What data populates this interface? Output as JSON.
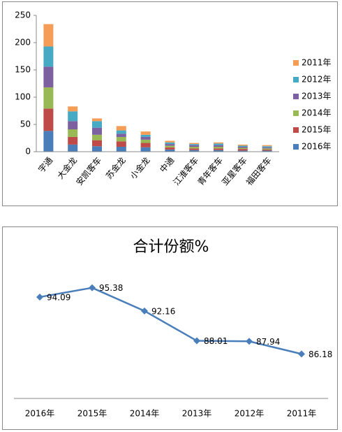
{
  "chart_data": [
    {
      "type": "stacked_bar",
      "categories": [
        "宇通",
        "大金龙",
        "安凯客车",
        "苏金龙",
        "小金龙",
        "中通",
        "江淮客车",
        "青年客车",
        "亚星客车",
        "福田客车"
      ],
      "series": [
        {
          "name": "2016年",
          "color": "#4a7ebb",
          "values": [
            38,
            13,
            10,
            9,
            8,
            4,
            3,
            3,
            2,
            2
          ]
        },
        {
          "name": "2015年",
          "color": "#be4b48",
          "values": [
            41,
            14,
            11,
            10,
            8,
            4,
            3,
            3,
            3,
            2
          ]
        },
        {
          "name": "2014年",
          "color": "#98b954",
          "values": [
            39,
            14,
            10,
            8,
            6,
            3,
            3,
            3,
            2,
            2
          ]
        },
        {
          "name": "2013年",
          "color": "#7d60a0",
          "values": [
            38,
            15,
            13,
            6,
            5,
            3,
            3,
            3,
            2,
            2
          ]
        },
        {
          "name": "2012年",
          "color": "#46aac5",
          "values": [
            37,
            18,
            12,
            6,
            4,
            3,
            2,
            3,
            2,
            2
          ]
        },
        {
          "name": "2011年",
          "color": "#f59d56",
          "values": [
            41,
            9,
            5,
            8,
            6,
            3,
            2,
            2,
            2,
            2
          ]
        }
      ],
      "ylim": [
        0,
        250
      ],
      "yticks": [
        0,
        50,
        100,
        150,
        200,
        250
      ],
      "grid": false,
      "legend": "right"
    },
    {
      "type": "line",
      "title": "合计份额%",
      "categories": [
        "2016年",
        "2015年",
        "2014年",
        "2013年",
        "2012年",
        "2011年"
      ],
      "values": [
        94.09,
        95.38,
        92.16,
        88.01,
        87.94,
        86.18
      ],
      "color": "#4a7ebb",
      "ylim": [
        80,
        97
      ]
    }
  ]
}
